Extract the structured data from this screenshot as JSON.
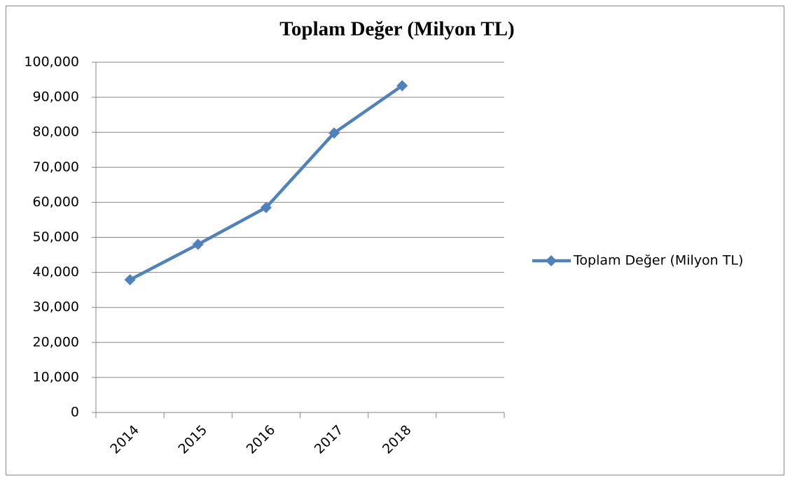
{
  "chart_data": {
    "type": "line",
    "title": "Toplam Değer (Milyon TL)",
    "categories": [
      "2014",
      "2015",
      "2016",
      "2017",
      "2018",
      null
    ],
    "series": [
      {
        "name": "Toplam Değer (Milyon TL)",
        "color": "#4f81bd",
        "values": [
          37900,
          48000,
          58500,
          79800,
          93300,
          null
        ]
      }
    ],
    "ylim": [
      0,
      100000
    ],
    "yticks": [
      0,
      {
        "value": 10000,
        "label": "10,000"
      },
      {
        "value": 20000,
        "label": "20,000"
      },
      {
        "value": 30000,
        "label": "30,000"
      },
      {
        "value": 40000,
        "label": "40,000"
      },
      {
        "value": 50000,
        "label": "50,000"
      },
      {
        "value": 60000,
        "label": "60,000"
      },
      {
        "value": 70000,
        "label": "70,000"
      },
      {
        "value": 80000,
        "label": "80,000"
      },
      {
        "value": 90000,
        "label": "90,000"
      },
      {
        "value": 100000,
        "label": "100,000"
      }
    ],
    "grid": true,
    "legend": "right"
  }
}
